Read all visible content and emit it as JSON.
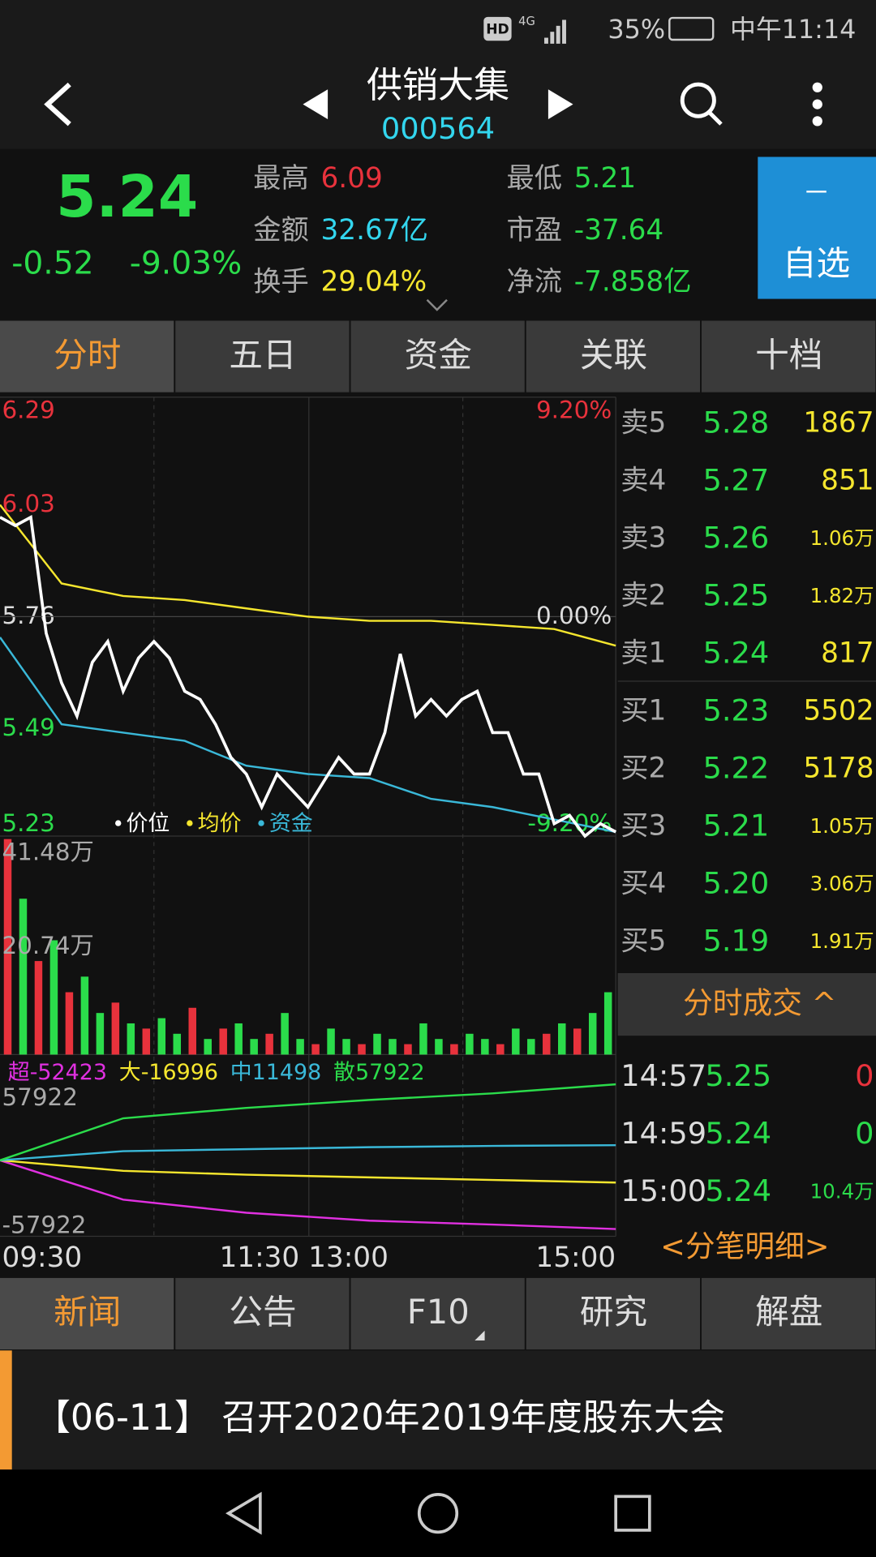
{
  "status_bar": {
    "hd": "HD",
    "network": "4G",
    "battery": "35%",
    "time": "中午11:14"
  },
  "header": {
    "name": "供销大集",
    "code": "000564"
  },
  "quote": {
    "price": "5.24",
    "change": "-0.52",
    "change_pct": "-9.03%",
    "stats": [
      {
        "label": "最高",
        "value": "6.09",
        "color": "#e8323c"
      },
      {
        "label": "最低",
        "value": "5.21",
        "color": "#2bdc4b"
      },
      {
        "label": "金额",
        "value": "32.67亿",
        "color": "#33d6ee"
      },
      {
        "label": "市盈",
        "value": "-37.64",
        "color": "#2bdc4b"
      },
      {
        "label": "换手",
        "value": "29.04%",
        "color": "#f5e62e"
      },
      {
        "label": "净流",
        "value": "-7.858亿",
        "color": "#2bdc4b"
      }
    ],
    "watch_button": "自选"
  },
  "tabs": [
    "分时",
    "五日",
    "资金",
    "关联",
    "十档"
  ],
  "active_tab": 0,
  "intraday": {
    "ylim": [
      5.23,
      6.29
    ],
    "yticks": [
      6.29,
      6.03,
      5.76,
      5.49,
      5.23
    ],
    "tick_colors": [
      "#e8323c",
      "#e8323c",
      "#dddddd",
      "#2bdc4b",
      "#2bdc4b"
    ],
    "pct_ticks": [
      {
        "value": 6.29,
        "label": "9.20%"
      },
      {
        "value": 5.76,
        "label": "0.00%"
      },
      {
        "value": 5.23,
        "label": "-9.20%"
      }
    ],
    "pct_colors": [
      "#e8323c",
      "#dddddd",
      "#2bdc4b"
    ],
    "series": [
      {
        "name": "价位",
        "color": "#ffffff",
        "values": [
          6.0,
          5.98,
          6.0,
          5.72,
          5.6,
          5.52,
          5.65,
          5.7,
          5.58,
          5.66,
          5.7,
          5.66,
          5.58,
          5.56,
          5.5,
          5.42,
          5.38,
          5.3,
          5.38,
          5.34,
          5.3,
          5.36,
          5.42,
          5.38,
          5.38,
          5.48,
          5.67,
          5.52,
          5.56,
          5.52,
          5.56,
          5.58,
          5.48,
          5.48,
          5.38,
          5.38,
          5.26,
          5.28,
          5.23,
          5.26,
          5.24
        ]
      },
      {
        "name": "均价",
        "color": "#f5e62e",
        "values": [
          6.03,
          5.84,
          5.81,
          5.8,
          5.78,
          5.76,
          5.75,
          5.75,
          5.74,
          5.73,
          5.69
        ]
      },
      {
        "name": "资金",
        "color": "#3ab8d8",
        "values": [
          5.71,
          5.5,
          5.48,
          5.46,
          5.4,
          5.38,
          5.37,
          5.32,
          5.3,
          5.27,
          5.24
        ]
      }
    ],
    "time_labels": [
      "09:30",
      "11:30 13:00",
      "15:00"
    ]
  },
  "volume": {
    "ylim": [
      0,
      41.48
    ],
    "yticks": [
      {
        "value": 41.48,
        "label": "41.48万"
      },
      {
        "value": 20.74,
        "label": "20.74万"
      }
    ],
    "values": [
      41.48,
      30,
      18,
      22,
      12,
      15,
      8,
      10,
      6,
      5,
      7,
      4,
      9,
      3,
      5,
      6,
      3,
      4,
      8,
      3,
      2,
      5,
      3,
      2,
      4,
      3,
      2,
      6,
      3,
      2,
      4,
      3,
      2,
      5,
      3,
      4,
      6,
      5,
      8,
      12
    ],
    "up": [
      true,
      false,
      true,
      false,
      true,
      false,
      false,
      true,
      false,
      true,
      false,
      false,
      true,
      false,
      true,
      false,
      false,
      true,
      false,
      false,
      true,
      false,
      false,
      true,
      false,
      false,
      true,
      false,
      false,
      true,
      false,
      false,
      true,
      false,
      false,
      true,
      false,
      true,
      false,
      false
    ]
  },
  "flow": {
    "ylim": [
      -57922,
      57922
    ],
    "yticks": [
      57922,
      -57922
    ],
    "series": [
      {
        "name": "超-52423",
        "color": "#e030e0",
        "values": [
          0,
          -30000,
          -40000,
          -46000,
          -49000,
          -52423
        ]
      },
      {
        "name": "大-16996",
        "color": "#f5e62e",
        "values": [
          0,
          -8000,
          -11000,
          -13000,
          -15000,
          -16996
        ]
      },
      {
        "name": "中11498",
        "color": "#3ab8d8",
        "values": [
          0,
          7000,
          8500,
          10000,
          11000,
          11498
        ]
      },
      {
        "name": "散57922",
        "color": "#2bdc4b",
        "values": [
          0,
          32000,
          40000,
          46000,
          51000,
          57922
        ]
      }
    ]
  },
  "order_book": {
    "asks": [
      {
        "label": "卖5",
        "price": "5.28",
        "volume": "1867"
      },
      {
        "label": "卖4",
        "price": "5.27",
        "volume": "851"
      },
      {
        "label": "卖3",
        "price": "5.26",
        "volume": "1.06万"
      },
      {
        "label": "卖2",
        "price": "5.25",
        "volume": "1.82万"
      },
      {
        "label": "卖1",
        "price": "5.24",
        "volume": "817"
      }
    ],
    "bids": [
      {
        "label": "买1",
        "price": "5.23",
        "volume": "5502"
      },
      {
        "label": "买2",
        "price": "5.22",
        "volume": "5178"
      },
      {
        "label": "买3",
        "price": "5.21",
        "volume": "1.05万"
      },
      {
        "label": "买4",
        "price": "5.20",
        "volume": "3.06万"
      },
      {
        "label": "买5",
        "price": "5.19",
        "volume": "1.91万"
      }
    ]
  },
  "trades": {
    "title": "分时成交 ^",
    "rows": [
      {
        "time": "14:57",
        "price": "5.25",
        "volume": "0",
        "color": "#e8323c"
      },
      {
        "time": "14:59",
        "price": "5.24",
        "volume": "0",
        "color": "#2bdc4b"
      },
      {
        "time": "15:00",
        "price": "5.24",
        "volume": "10.4万",
        "color": "#2bdc4b"
      }
    ],
    "detail_link": "<分笔明细>"
  },
  "bottom_tabs": [
    "新闻",
    "公告",
    "F10",
    "研究",
    "解盘"
  ],
  "active_bottom_tab": 0,
  "news": "【06-11】 召开2020年2019年度股东大会"
}
